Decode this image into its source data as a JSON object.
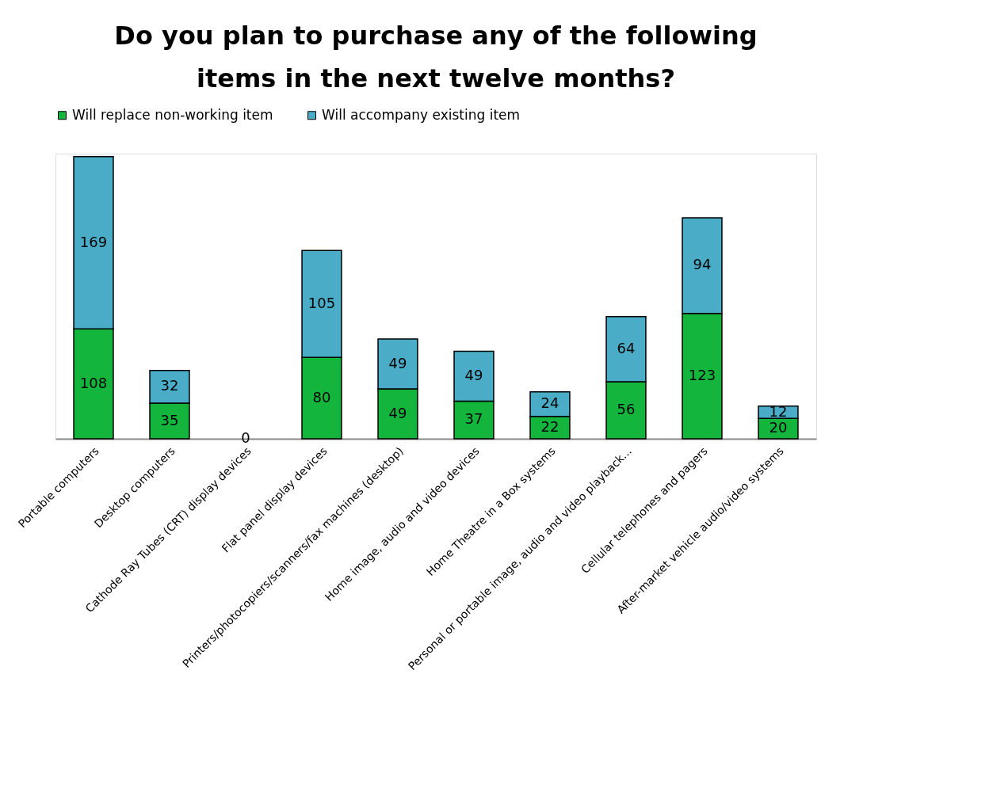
{
  "chart_data": {
    "type": "bar",
    "title": "Do you plan to purchase any of the following items in the next twelve months?",
    "categories": [
      "Portable computers",
      "Desktop computers",
      "Cathode Ray Tubes (CRT) display devices",
      "Flat panel display devices",
      "Printers/photocopiers/scanners/fax machines (desktop)",
      "Home image, audio and video devices",
      "Home Theatre in a Box systems",
      "Personal or portable image, audio and video playback...",
      "Cellular telephones and pagers",
      "After-market vehicle audio/video systems"
    ],
    "series": [
      {
        "name": "Will replace non-working item",
        "color": "#14b53c",
        "values": [
          108,
          35,
          0,
          80,
          49,
          37,
          22,
          56,
          123,
          20
        ]
      },
      {
        "name": "Will accompany existing item",
        "color": "#4aacc6",
        "values": [
          169,
          32,
          null,
          105,
          49,
          49,
          24,
          64,
          94,
          12
        ]
      }
    ],
    "stacked": true,
    "data_labels": true,
    "legend": "top"
  }
}
